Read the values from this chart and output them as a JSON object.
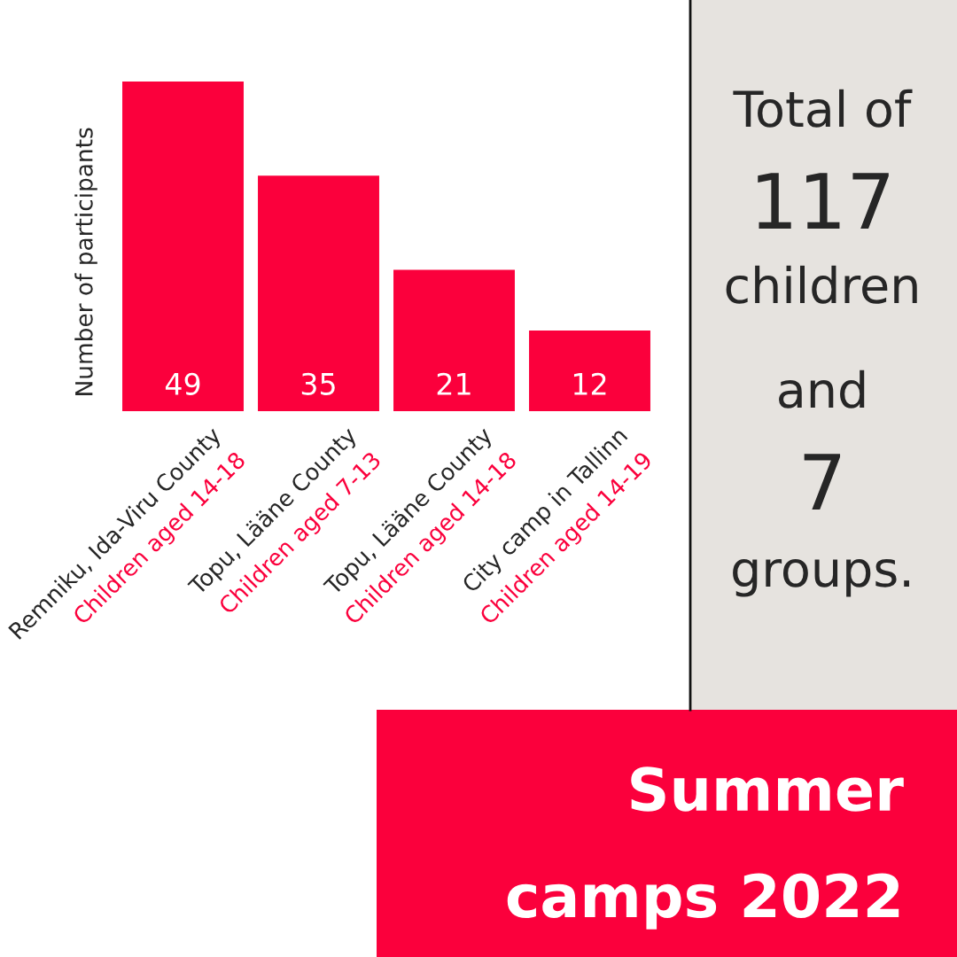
{
  "chart_data": {
    "type": "bar",
    "title": "Summer\ncamps 2022",
    "ylabel": "Number of participants",
    "categories": [
      "Remniku, Ida-Viru County\nChildren aged 14-18",
      "Topu, Lääne County\nChildren aged 7-13",
      "Topu, Lääne County\nChildren aged 14-18",
      "City camp in Tallinn\nChildren aged 14-19"
    ],
    "values": [
      49,
      35,
      21,
      12
    ],
    "color": "#fb003c",
    "data_labels": true,
    "tick_labels": "x",
    "annotations": [
      "Total of",
      "117",
      "children",
      "and",
      "7",
      "groups."
    ]
  }
}
